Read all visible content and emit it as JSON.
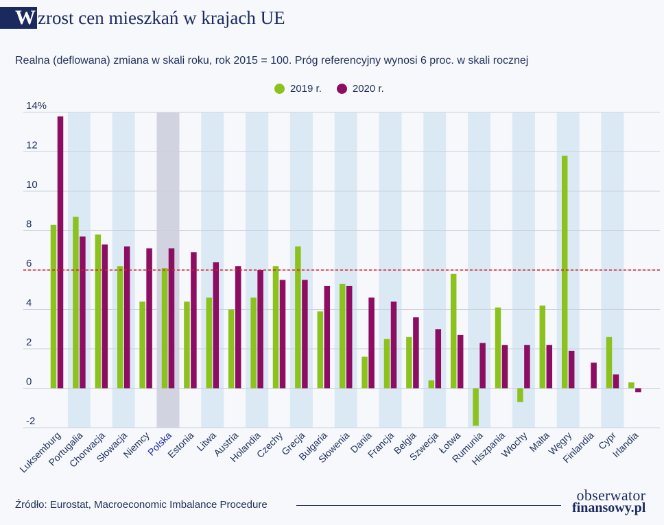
{
  "header": {
    "title_initial": "W",
    "title_rest": "zrost cen mieszkań w krajach UE",
    "subtitle": "Realna (deflowana) zmiana w skali roku, rok 2015 = 100. Próg referencyjny wynosi 6 proc. w skali rocznej"
  },
  "legend": {
    "items": [
      {
        "label": "2019 r.",
        "color": "#8cc21e"
      },
      {
        "label": "2020 r.",
        "color": "#8c0d62"
      }
    ]
  },
  "footer": {
    "source": "Źródło: Eurostat, Macroeconomic Imbalance Procedure",
    "brand_top": "obserwator",
    "brand_bottom": "finansowy.pl"
  },
  "chart_data": {
    "type": "bar",
    "title": "Wzrost cen mieszkań w krajach UE",
    "subtitle": "Realna (deflowana) zmiana w skali roku, rok 2015 = 100. Próg referencyjny wynosi 6 proc. w skali rocznej",
    "xlabel": "",
    "ylabel": "",
    "ylim": [
      -2,
      14
    ],
    "yticks": [
      -2,
      0,
      2,
      4,
      6,
      8,
      10,
      12,
      14
    ],
    "ytick_labels": [
      "-2",
      "0",
      "2",
      "4",
      "6",
      "8",
      "10",
      "12",
      "14%"
    ],
    "reference_line": {
      "value": 6,
      "color": "#d2232a",
      "style": "dashed"
    },
    "highlight_category": "Polska",
    "categories": [
      "Luksemburg",
      "Portugalia",
      "Chorwacja",
      "Słowacja",
      "Niemcy",
      "Polska",
      "Estonia",
      "Litwa",
      "Austria",
      "Holandia",
      "Czechy",
      "Grecja",
      "Bułgaria",
      "Słowenia",
      "Dania",
      "Francja",
      "Belgia",
      "Szwecja",
      "Łotwa",
      "Rumunia",
      "Hiszpania",
      "Włochy",
      "Malta",
      "Węgry",
      "Finlandia",
      "Cypr",
      "Irlandia"
    ],
    "series": [
      {
        "name": "2019 r.",
        "color": "#8cc21e",
        "values": [
          8.3,
          8.7,
          7.8,
          6.2,
          4.4,
          6.1,
          4.4,
          4.6,
          4.0,
          4.6,
          6.2,
          7.2,
          3.9,
          5.3,
          1.6,
          2.5,
          2.6,
          0.4,
          5.8,
          -1.9,
          4.1,
          -0.7,
          4.2,
          11.8,
          0.0,
          2.6,
          0.3
        ]
      },
      {
        "name": "2020 r.",
        "color": "#8c0d62",
        "values": [
          13.8,
          7.7,
          7.3,
          7.2,
          7.1,
          7.1,
          6.9,
          6.4,
          6.2,
          6.0,
          5.5,
          5.5,
          5.2,
          5.2,
          4.6,
          4.4,
          3.6,
          3.0,
          2.7,
          2.3,
          2.2,
          2.2,
          2.2,
          1.9,
          1.3,
          0.7,
          -0.2
        ]
      }
    ],
    "colors": {
      "band_alt": "#dbe9f5",
      "band_highlight": "#d2d3e1",
      "grid": "#c9d2dd",
      "axis_text": "#1f2f5a",
      "highlight_text": "#1b2a9e"
    }
  }
}
